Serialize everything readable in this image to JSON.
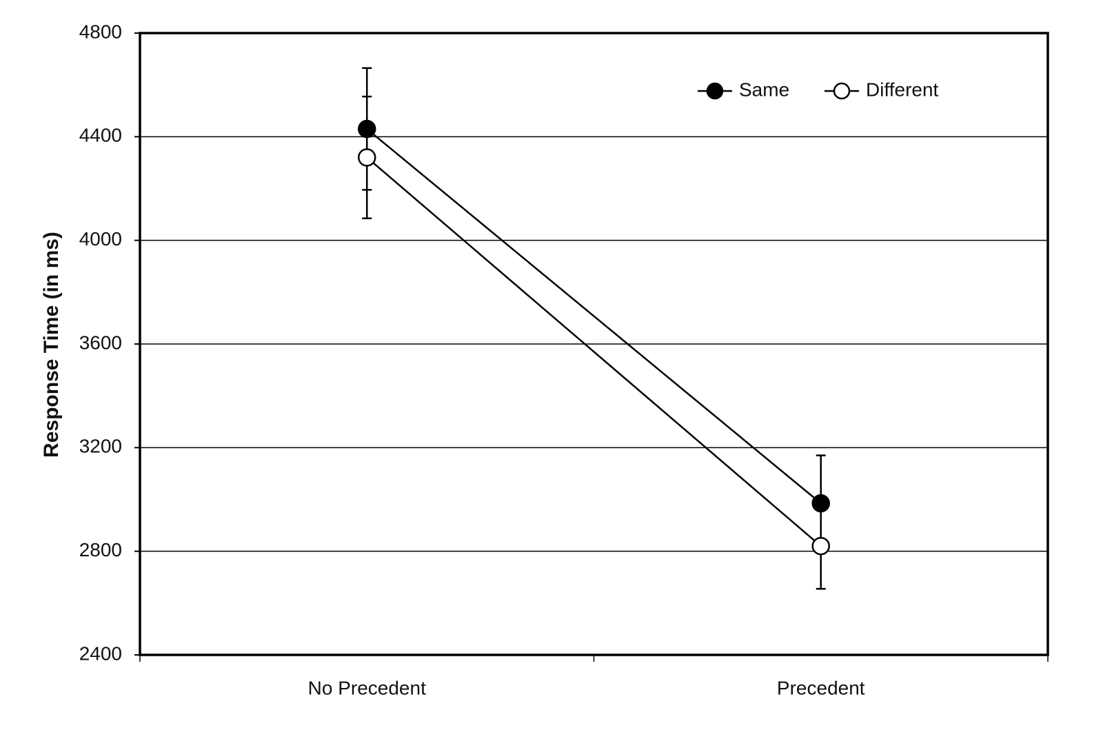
{
  "chart_data": {
    "type": "line",
    "y_label": "Response Time (in ms)",
    "categories": [
      "No Precedent",
      "Precedent"
    ],
    "series": [
      {
        "name": "Same",
        "color": "#000000",
        "marker": "filled",
        "values": [
          4430,
          2985
        ],
        "errors": [
          235,
          185
        ]
      },
      {
        "name": "Different",
        "color": "#000000",
        "marker": "open",
        "values": [
          4320,
          2820
        ],
        "errors": [
          235,
          165
        ]
      }
    ],
    "ylim": [
      2400,
      4800
    ],
    "yticks": [
      2400,
      2800,
      3200,
      3600,
      4000,
      4400,
      4800
    ],
    "grid": true,
    "legend": "upper right"
  }
}
